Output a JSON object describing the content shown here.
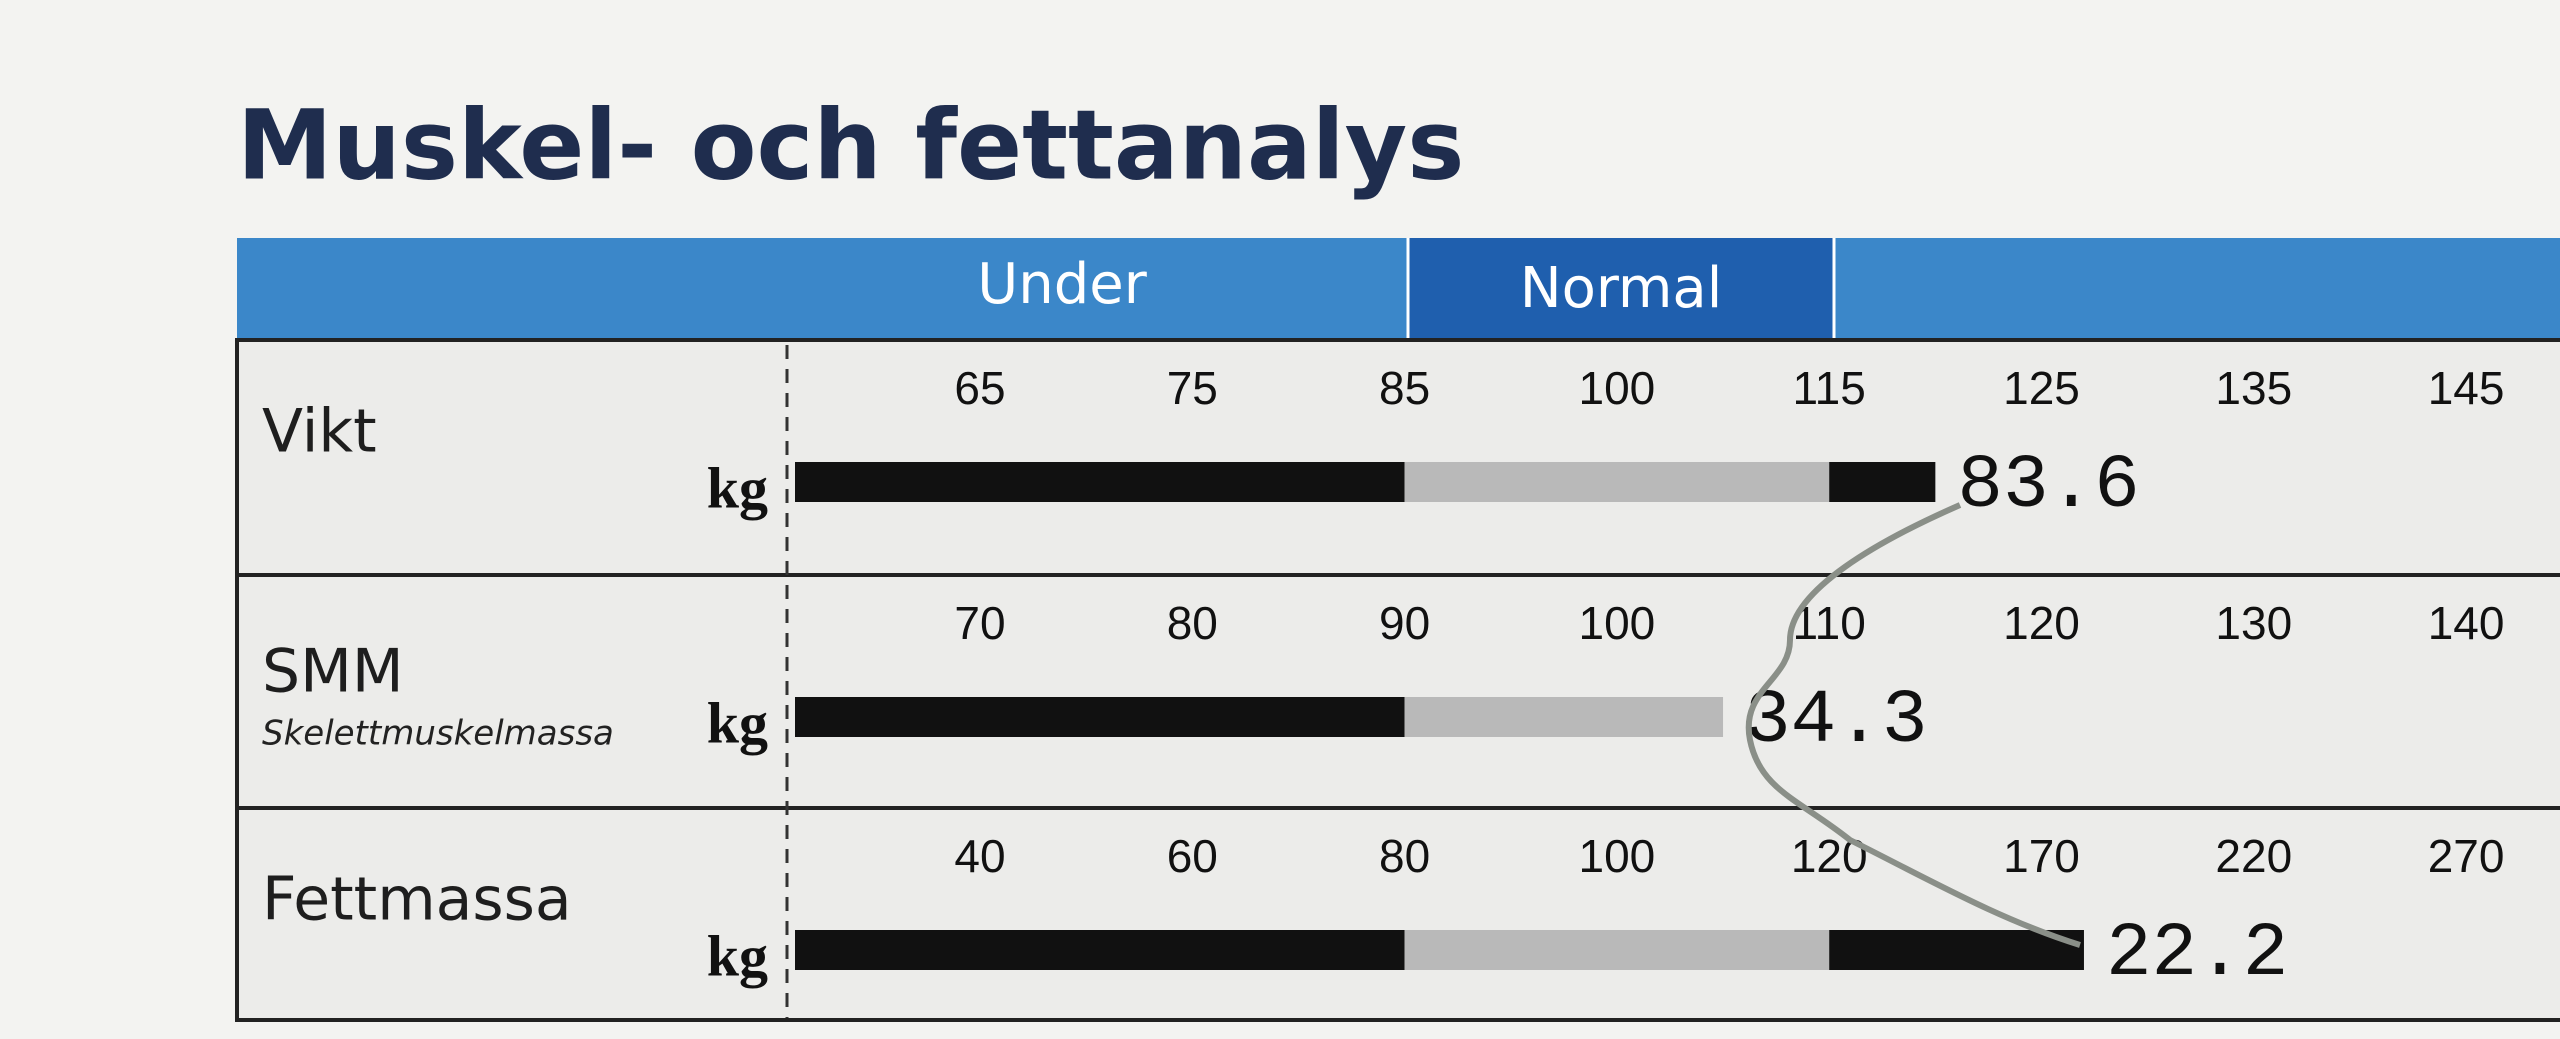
{
  "title": "Muskel- och fettanalys",
  "header": {
    "zones": [
      "Under",
      "Normal"
    ]
  },
  "rows": [
    {
      "label": "Vikt",
      "unit": "kg",
      "ticks": [
        65,
        75,
        85,
        100,
        115,
        125,
        135,
        145
      ],
      "value": 83.6,
      "percent": 120
    },
    {
      "label": "SMM",
      "sublabel": "Skelettmuskelmassa",
      "unit": "kg",
      "ticks": [
        70,
        80,
        90,
        100,
        110,
        120,
        130,
        140
      ],
      "value": 34.3,
      "percent": 105
    },
    {
      "label": "Fettmassa",
      "unit": "kg",
      "ticks": [
        40,
        60,
        80,
        100,
        120,
        170,
        220,
        270
      ],
      "value": 22.2,
      "percent": 180
    }
  ]
}
